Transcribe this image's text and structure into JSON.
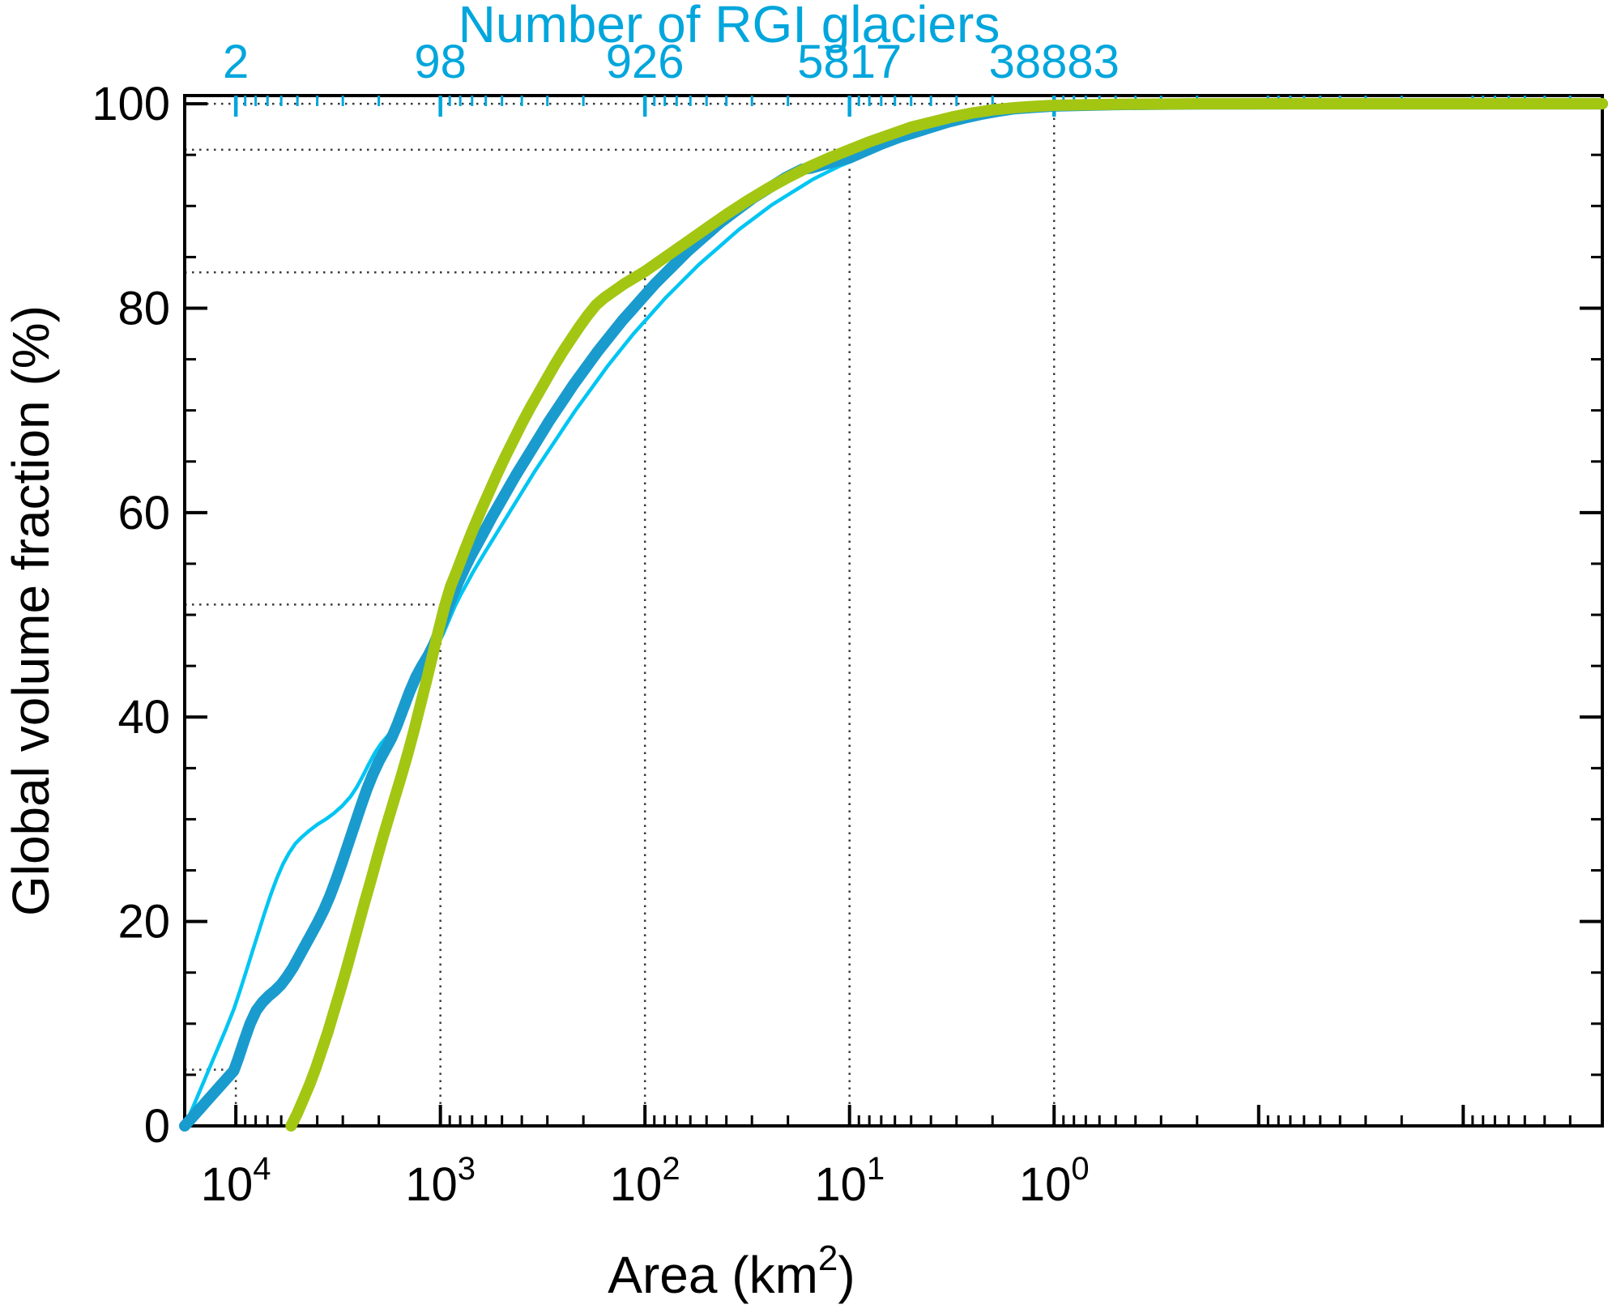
{
  "chart_data": {
    "type": "line",
    "top_axis": {
      "title": "Number of RGI glaciers",
      "labels": [
        "2",
        "98",
        "926",
        "5817",
        "38883"
      ],
      "positions_log": [
        4,
        3,
        2,
        1,
        0
      ],
      "color": "#00a6dc"
    },
    "x_axis": {
      "label_prefix": "Area (km",
      "label_sup": "2",
      "label_suffix": ")",
      "scale": "log10_reversed",
      "range_log": [
        4.25,
        -2.68
      ],
      "major_ticks_log": [
        4,
        3,
        2,
        1,
        0
      ],
      "extra_major_ticks_log": [
        -1,
        -2
      ],
      "tick_base": "10",
      "tick_exponents": [
        "4",
        "3",
        "2",
        "1",
        "0"
      ]
    },
    "y_axis": {
      "label": "Global volume fraction (%)",
      "min": 0,
      "max": 100,
      "major_ticks": [
        0,
        20,
        40,
        60,
        80,
        100
      ],
      "minor_step": 5
    },
    "grid": "dotted-reference-lines",
    "legend": "none",
    "reference_markers": [
      {
        "x_log": 4,
        "y": 5.5
      },
      {
        "x_log": 3,
        "y": 51
      },
      {
        "x_log": 2,
        "y": 83.5
      },
      {
        "x_log": 1,
        "y": 95.5
      },
      {
        "x_log": 0,
        "y": 100
      }
    ],
    "series": [
      {
        "name": "thin-cyan-curve",
        "color": "#00c5f2",
        "width": 4.5,
        "points": [
          [
            4.25,
            0
          ],
          [
            4.21,
            1.8
          ],
          [
            4.17,
            3.7
          ],
          [
            4.13,
            5.6
          ],
          [
            4.09,
            7.5
          ],
          [
            4.05,
            9.4
          ],
          [
            4.01,
            11.4
          ],
          [
            3.98,
            13.2
          ],
          [
            3.95,
            15.1
          ],
          [
            3.92,
            17.0
          ],
          [
            3.89,
            18.9
          ],
          [
            3.86,
            20.8
          ],
          [
            3.83,
            22.6
          ],
          [
            3.8,
            24.2
          ],
          [
            3.77,
            25.6
          ],
          [
            3.74,
            26.7
          ],
          [
            3.71,
            27.6
          ],
          [
            3.68,
            28.2
          ],
          [
            3.64,
            28.9
          ],
          [
            3.6,
            29.5
          ],
          [
            3.56,
            30.0
          ],
          [
            3.52,
            30.6
          ],
          [
            3.48,
            31.3
          ],
          [
            3.44,
            32.2
          ],
          [
            3.41,
            33.1
          ],
          [
            3.38,
            34.2
          ],
          [
            3.35,
            35.4
          ],
          [
            3.32,
            36.5
          ],
          [
            3.29,
            37.4
          ],
          [
            3.26,
            38.1
          ],
          [
            3.23,
            38.9
          ],
          [
            3.2,
            40.0
          ],
          [
            3.17,
            41.5
          ],
          [
            3.14,
            43.0
          ],
          [
            3.11,
            44.2
          ],
          [
            3.08,
            45.1
          ],
          [
            3.05,
            45.9
          ],
          [
            3.02,
            46.8
          ],
          [
            2.99,
            48.0
          ],
          [
            2.96,
            49.4
          ],
          [
            2.93,
            50.8
          ],
          [
            2.9,
            52.0
          ],
          [
            2.87,
            53.1
          ],
          [
            2.84,
            54.2
          ],
          [
            2.81,
            55.2
          ],
          [
            2.78,
            56.2
          ],
          [
            2.74,
            57.5
          ],
          [
            2.7,
            58.8
          ],
          [
            2.66,
            60.1
          ],
          [
            2.62,
            61.4
          ],
          [
            2.58,
            62.7
          ],
          [
            2.54,
            64.0
          ],
          [
            2.5,
            65.2
          ],
          [
            2.46,
            66.4
          ],
          [
            2.42,
            67.6
          ],
          [
            2.38,
            68.8
          ],
          [
            2.34,
            70.0
          ],
          [
            2.3,
            71.1
          ],
          [
            2.26,
            72.2
          ],
          [
            2.22,
            73.3
          ],
          [
            2.18,
            74.4
          ],
          [
            2.14,
            75.4
          ],
          [
            2.1,
            76.4
          ],
          [
            2.06,
            77.4
          ],
          [
            2.02,
            78.3
          ],
          [
            1.98,
            79.2
          ],
          [
            1.94,
            80.1
          ],
          [
            1.9,
            81.0
          ],
          [
            1.86,
            81.8
          ],
          [
            1.82,
            82.6
          ],
          [
            1.78,
            83.4
          ],
          [
            1.74,
            84.2
          ],
          [
            1.7,
            84.9
          ],
          [
            1.66,
            85.6
          ],
          [
            1.62,
            86.3
          ],
          [
            1.58,
            87.0
          ],
          [
            1.54,
            87.7
          ],
          [
            1.5,
            88.3
          ],
          [
            1.46,
            88.9
          ],
          [
            1.42,
            89.5
          ],
          [
            1.38,
            90.1
          ],
          [
            1.34,
            90.6
          ],
          [
            1.3,
            91.1
          ],
          [
            1.26,
            91.6
          ],
          [
            1.22,
            92.1
          ],
          [
            1.18,
            92.6
          ],
          [
            1.14,
            93.0
          ],
          [
            1.1,
            93.4
          ],
          [
            1.05,
            93.9
          ],
          [
            1.0,
            94.3
          ],
          [
            0.92,
            95.0
          ],
          [
            0.84,
            95.7
          ],
          [
            0.76,
            96.3
          ],
          [
            0.68,
            96.9
          ],
          [
            0.6,
            97.4
          ],
          [
            0.52,
            97.9
          ],
          [
            0.44,
            98.35
          ],
          [
            0.36,
            98.7
          ],
          [
            0.28,
            99.0
          ],
          [
            0.2,
            99.3
          ],
          [
            0.1,
            99.5
          ],
          [
            0.0,
            99.65
          ],
          [
            -0.3,
            99.85
          ],
          [
            -0.7,
            99.95
          ],
          [
            -1.2,
            100
          ],
          [
            -2.68,
            100
          ]
        ]
      },
      {
        "name": "thick-blue-curve",
        "color": "#1a9bce",
        "width": 14,
        "points": [
          [
            4.25,
            0
          ],
          [
            4.21,
            0.9
          ],
          [
            4.17,
            1.8
          ],
          [
            4.13,
            2.7
          ],
          [
            4.09,
            3.6
          ],
          [
            4.05,
            4.5
          ],
          [
            4.01,
            5.4
          ],
          [
            3.99,
            6.5
          ],
          [
            3.96,
            8.3
          ],
          [
            3.93,
            10.0
          ],
          [
            3.9,
            11.3
          ],
          [
            3.87,
            12.1
          ],
          [
            3.84,
            12.7
          ],
          [
            3.81,
            13.2
          ],
          [
            3.78,
            13.8
          ],
          [
            3.75,
            14.6
          ],
          [
            3.72,
            15.5
          ],
          [
            3.69,
            16.6
          ],
          [
            3.66,
            17.7
          ],
          [
            3.63,
            18.8
          ],
          [
            3.6,
            19.9
          ],
          [
            3.57,
            21.1
          ],
          [
            3.54,
            22.5
          ],
          [
            3.51,
            24.1
          ],
          [
            3.48,
            25.8
          ],
          [
            3.45,
            27.6
          ],
          [
            3.42,
            29.4
          ],
          [
            3.39,
            31.2
          ],
          [
            3.36,
            32.9
          ],
          [
            3.33,
            34.4
          ],
          [
            3.3,
            35.7
          ],
          [
            3.27,
            36.8
          ],
          [
            3.24,
            37.9
          ],
          [
            3.21,
            39.3
          ],
          [
            3.18,
            40.9
          ],
          [
            3.15,
            42.5
          ],
          [
            3.12,
            43.9
          ],
          [
            3.09,
            45.0
          ],
          [
            3.06,
            46.0
          ],
          [
            3.03,
            47.2
          ],
          [
            3.0,
            48.7
          ],
          [
            2.97,
            50.3
          ],
          [
            2.94,
            51.9
          ],
          [
            2.91,
            53.3
          ],
          [
            2.88,
            54.6
          ],
          [
            2.85,
            55.8
          ],
          [
            2.82,
            56.9
          ],
          [
            2.79,
            58.0
          ],
          [
            2.75,
            59.5
          ],
          [
            2.71,
            60.9
          ],
          [
            2.67,
            62.3
          ],
          [
            2.63,
            63.7
          ],
          [
            2.59,
            65.0
          ],
          [
            2.55,
            66.3
          ],
          [
            2.51,
            67.6
          ],
          [
            2.47,
            68.9
          ],
          [
            2.43,
            70.1
          ],
          [
            2.39,
            71.3
          ],
          [
            2.35,
            72.5
          ],
          [
            2.31,
            73.6
          ],
          [
            2.27,
            74.7
          ],
          [
            2.23,
            75.8
          ],
          [
            2.19,
            76.8
          ],
          [
            2.15,
            77.8
          ],
          [
            2.11,
            78.8
          ],
          [
            2.07,
            79.7
          ],
          [
            2.03,
            80.6
          ],
          [
            1.99,
            81.5
          ],
          [
            1.95,
            82.4
          ],
          [
            1.91,
            83.2
          ],
          [
            1.87,
            84.0
          ],
          [
            1.83,
            84.8
          ],
          [
            1.79,
            85.6
          ],
          [
            1.75,
            86.3
          ],
          [
            1.71,
            87.0
          ],
          [
            1.67,
            87.7
          ],
          [
            1.63,
            88.4
          ],
          [
            1.59,
            89.0
          ],
          [
            1.55,
            89.6
          ],
          [
            1.51,
            90.2
          ],
          [
            1.47,
            90.8
          ],
          [
            1.43,
            91.3
          ],
          [
            1.39,
            91.8
          ],
          [
            1.35,
            92.3
          ],
          [
            1.31,
            92.8
          ],
          [
            1.27,
            93.2
          ],
          [
            1.23,
            93.6
          ],
          [
            1.19,
            93.7
          ],
          [
            1.1,
            94.2
          ],
          [
            1.0,
            94.7
          ],
          [
            0.92,
            95.4
          ],
          [
            0.84,
            96.1
          ],
          [
            0.76,
            96.7
          ],
          [
            0.68,
            97.2
          ],
          [
            0.6,
            97.7
          ],
          [
            0.52,
            98.2
          ],
          [
            0.44,
            98.6
          ],
          [
            0.36,
            98.95
          ],
          [
            0.28,
            99.25
          ],
          [
            0.2,
            99.5
          ],
          [
            0.1,
            99.65
          ],
          [
            0.0,
            99.78
          ],
          [
            -0.3,
            99.92
          ],
          [
            -0.7,
            99.98
          ],
          [
            -1.2,
            100
          ],
          [
            -2.68,
            100
          ]
        ]
      },
      {
        "name": "thick-green-curve",
        "color": "#a3c613",
        "width": 14,
        "points": [
          [
            3.73,
            0
          ],
          [
            3.7,
            1.2
          ],
          [
            3.67,
            2.6
          ],
          [
            3.64,
            4.0
          ],
          [
            3.61,
            5.6
          ],
          [
            3.58,
            7.4
          ],
          [
            3.55,
            9.2
          ],
          [
            3.52,
            11.2
          ],
          [
            3.49,
            13.2
          ],
          [
            3.46,
            15.3
          ],
          [
            3.43,
            17.5
          ],
          [
            3.4,
            19.7
          ],
          [
            3.37,
            21.9
          ],
          [
            3.34,
            24.0
          ],
          [
            3.31,
            26.2
          ],
          [
            3.28,
            28.3
          ],
          [
            3.25,
            30.3
          ],
          [
            3.22,
            32.3
          ],
          [
            3.19,
            34.3
          ],
          [
            3.16,
            36.4
          ],
          [
            3.13,
            38.6
          ],
          [
            3.1,
            41.0
          ],
          [
            3.07,
            43.4
          ],
          [
            3.04,
            45.9
          ],
          [
            3.01,
            48.4
          ],
          [
            2.98,
            50.8
          ],
          [
            2.95,
            52.8
          ],
          [
            2.92,
            54.3
          ],
          [
            2.88,
            56.4
          ],
          [
            2.84,
            58.4
          ],
          [
            2.8,
            60.3
          ],
          [
            2.76,
            62.1
          ],
          [
            2.72,
            63.9
          ],
          [
            2.68,
            65.6
          ],
          [
            2.64,
            67.2
          ],
          [
            2.6,
            68.8
          ],
          [
            2.56,
            70.3
          ],
          [
            2.52,
            71.7
          ],
          [
            2.48,
            73.1
          ],
          [
            2.44,
            74.5
          ],
          [
            2.4,
            75.8
          ],
          [
            2.36,
            77.0
          ],
          [
            2.32,
            78.2
          ],
          [
            2.28,
            79.3
          ],
          [
            2.24,
            80.3
          ],
          [
            2.2,
            81.0
          ],
          [
            2.1,
            82.4
          ],
          [
            2.0,
            83.6
          ],
          [
            1.9,
            85.0
          ],
          [
            1.8,
            86.4
          ],
          [
            1.7,
            87.8
          ],
          [
            1.6,
            89.2
          ],
          [
            1.5,
            90.5
          ],
          [
            1.4,
            91.7
          ],
          [
            1.3,
            92.8
          ],
          [
            1.2,
            93.8
          ],
          [
            1.1,
            94.7
          ],
          [
            1.0,
            95.5
          ],
          [
            0.9,
            96.3
          ],
          [
            0.8,
            97.0
          ],
          [
            0.7,
            97.7
          ],
          [
            0.6,
            98.2
          ],
          [
            0.5,
            98.7
          ],
          [
            0.4,
            99.1
          ],
          [
            0.3,
            99.4
          ],
          [
            0.2,
            99.6
          ],
          [
            0.1,
            99.75
          ],
          [
            0.0,
            99.85
          ],
          [
            -0.3,
            99.95
          ],
          [
            -0.7,
            100
          ],
          [
            -2.68,
            100
          ]
        ]
      }
    ]
  }
}
